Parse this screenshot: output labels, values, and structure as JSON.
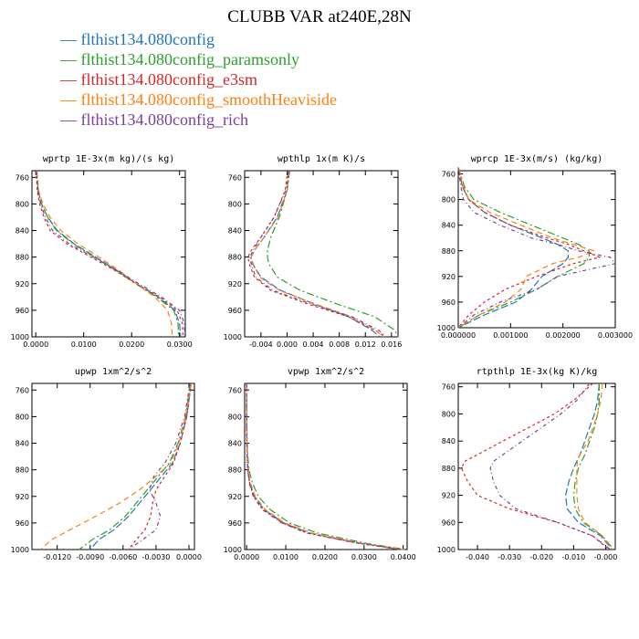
{
  "title": "CLUBB VAR at240E,28N",
  "legend": [
    {
      "label": "flthist134.080config",
      "color": "#1f77b4"
    },
    {
      "label": "flthist134.080config_paramsonly",
      "color": "#2ca02c"
    },
    {
      "label": "flthist134.080config_e3sm",
      "color": "#d62728"
    },
    {
      "label": "flthist134.080config_smoothHeaviside",
      "color": "#ff7f0e"
    },
    {
      "label": "flthist134.080config_rich",
      "color": "#7b3f9e"
    }
  ],
  "chart_data": [
    {
      "type": "line",
      "title": "wprtp  1E-3x(m kg)/(s kg)",
      "y": [
        750,
        780,
        800,
        820,
        840,
        860,
        880,
        900,
        920,
        940,
        960,
        980,
        1000
      ],
      "ylim": [
        750,
        1000
      ],
      "yticks": [
        "760",
        "800",
        "840",
        "880",
        "920",
        "960",
        "1000"
      ],
      "yticks_values": [
        760,
        800,
        840,
        880,
        920,
        960,
        1000
      ],
      "xlim": [
        -0.0008,
        0.0312
      ],
      "xticks": [
        "0.0000",
        "0.0100",
        "0.0200",
        "0.0300"
      ],
      "xticks_values": [
        0.0,
        0.01,
        0.02,
        0.03
      ],
      "series": [
        {
          "values": [
            0.0002,
            0.0005,
            0.0012,
            0.0025,
            0.0045,
            0.008,
            0.0125,
            0.017,
            0.021,
            0.0255,
            0.029,
            0.03,
            0.0302
          ]
        },
        {
          "values": [
            0.0002,
            0.0005,
            0.0012,
            0.0025,
            0.0043,
            0.0078,
            0.0122,
            0.0167,
            0.0208,
            0.0252,
            0.0288,
            0.0297,
            0.0298
          ]
        },
        {
          "values": [
            0.0001,
            0.0003,
            0.0008,
            0.0017,
            0.003,
            0.0065,
            0.0115,
            0.0165,
            0.021,
            0.0258,
            0.0295,
            0.0306,
            0.0307
          ]
        },
        {
          "values": [
            0.0002,
            0.0006,
            0.0015,
            0.003,
            0.0052,
            0.0088,
            0.0132,
            0.0174,
            0.021,
            0.0248,
            0.0275,
            0.0283,
            0.0285
          ]
        },
        {
          "values": [
            0.0001,
            0.0004,
            0.001,
            0.002,
            0.0035,
            0.007,
            0.012,
            0.017,
            0.0215,
            0.0262,
            0.03,
            0.031,
            0.0311
          ]
        }
      ]
    },
    {
      "type": "line",
      "title": "wpthlp  1x(m K)/s",
      "y": [
        750,
        780,
        820,
        850,
        870,
        880,
        890,
        910,
        930,
        950,
        970,
        990,
        1000
      ],
      "ylim": [
        750,
        1000
      ],
      "yticks": [
        "760",
        "800",
        "840",
        "880",
        "920",
        "960",
        "1000"
      ],
      "yticks_values": [
        760,
        800,
        840,
        880,
        920,
        960,
        1000
      ],
      "xlim": [
        -0.0065,
        0.017
      ],
      "xticks": [
        "-0.004",
        "0.000",
        "0.004",
        "0.008",
        "0.012",
        "0.016"
      ],
      "xticks_values": [
        -0.004,
        0.0,
        0.004,
        0.008,
        0.012,
        0.016
      ],
      "series": [
        {
          "values": [
            0.0002,
            0.0,
            -0.0015,
            -0.0035,
            -0.005,
            -0.0055,
            -0.0053,
            -0.004,
            -0.001,
            0.004,
            0.0095,
            0.013,
            0.0142
          ]
        },
        {
          "values": [
            0.0004,
            0.0,
            -0.0012,
            -0.0025,
            -0.003,
            -0.003,
            -0.0028,
            -0.0015,
            0.002,
            0.0075,
            0.0135,
            0.0165,
            0.0172
          ]
        },
        {
          "values": [
            0.0001,
            -0.0003,
            -0.002,
            -0.004,
            -0.0055,
            -0.006,
            -0.0058,
            -0.005,
            -0.0025,
            0.003,
            0.0095,
            0.0135,
            0.015
          ]
        },
        {
          "values": [
            0.0003,
            0.0,
            -0.0014,
            -0.0035,
            -0.005,
            -0.0055,
            -0.0052,
            -0.0042,
            -0.0012,
            0.0042,
            0.01,
            0.0135,
            0.0148
          ]
        },
        {
          "values": [
            0.0004,
            -0.0002,
            -0.002,
            -0.004,
            -0.0052,
            -0.0057,
            -0.0055,
            -0.0048,
            -0.0022,
            0.0035,
            0.01,
            0.014,
            0.0152
          ]
        }
      ]
    },
    {
      "type": "line",
      "title": "wprcp  1E-3x(m/s) (kg/kg)",
      "y": [
        750,
        780,
        800,
        820,
        840,
        860,
        870,
        880,
        890,
        900,
        920,
        940,
        960,
        980,
        1000
      ],
      "ylim": [
        755,
        1000
      ],
      "yticks": [
        "760",
        "800",
        "840",
        "880",
        "920",
        "960",
        "1000"
      ],
      "yticks_values": [
        760,
        800,
        840,
        880,
        920,
        960,
        1000
      ],
      "xlim": [
        0.0,
        0.003
      ],
      "xticks": [
        "0.000000",
        "0.001000",
        "0.002000",
        "0.003000"
      ],
      "xticks_values": [
        0.0,
        0.001,
        0.002,
        0.003
      ],
      "series": [
        {
          "values": [
            0.0,
            8e-05,
            0.0002,
            0.0005,
            0.001,
            0.0016,
            0.0019,
            0.0021,
            0.0021,
            0.002,
            0.0016,
            0.0014,
            0.0011,
            0.0005,
            0.0
          ]
        },
        {
          "values": [
            0.0,
            0.00012,
            0.0003,
            0.0008,
            0.0014,
            0.002,
            0.0023,
            0.0025,
            0.0025,
            0.0024,
            0.0019,
            0.0015,
            0.001,
            0.0004,
            0.0
          ]
        },
        {
          "values": [
            0.0,
            8e-05,
            0.0002,
            0.0005,
            0.001,
            0.0017,
            0.0021,
            0.0024,
            0.0027,
            0.0022,
            0.0015,
            0.0009,
            0.0005,
            0.0002,
            0.0
          ]
        },
        {
          "values": [
            0.0,
            0.0001,
            0.0002,
            0.0006,
            0.0012,
            0.0018,
            0.0022,
            0.0026,
            0.0023,
            0.0018,
            0.0013,
            0.0012,
            0.0009,
            0.0004,
            0.0
          ]
        },
        {
          "values": [
            0.0,
            5e-05,
            0.0001,
            0.0003,
            0.0008,
            0.0014,
            0.0019,
            0.0023,
            0.0029,
            0.003,
            0.0019,
            0.0015,
            0.0008,
            0.0003,
            0.0
          ]
        }
      ]
    },
    {
      "type": "line",
      "title": "upwp  1xm^2/s^2",
      "y": [
        750,
        800,
        840,
        870,
        890,
        910,
        930,
        950,
        970,
        985,
        1000
      ],
      "ylim": [
        750,
        1000
      ],
      "yticks": [
        "760",
        "800",
        "840",
        "880",
        "920",
        "960",
        "1000"
      ],
      "yticks_values": [
        760,
        800,
        840,
        880,
        920,
        960,
        1000
      ],
      "xlim": [
        -0.0143,
        0.0005
      ],
      "xticks": [
        "-0.0120",
        "-0.0090",
        "-0.0060",
        "-0.0030",
        "0.0000"
      ],
      "xticks_values": [
        -0.012,
        -0.009,
        -0.006,
        -0.003,
        0.0
      ],
      "series": [
        {
          "values": [
            0.0002,
            -0.0002,
            -0.0008,
            -0.0015,
            -0.0025,
            -0.0035,
            -0.0045,
            -0.0055,
            -0.0068,
            -0.0082,
            -0.009
          ]
        },
        {
          "values": [
            0.0001,
            -0.0003,
            -0.001,
            -0.0018,
            -0.0028,
            -0.0038,
            -0.0048,
            -0.0058,
            -0.0072,
            -0.0088,
            -0.01
          ]
        },
        {
          "values": [
            0.0002,
            -0.0002,
            -0.0008,
            -0.0014,
            -0.0022,
            -0.003,
            -0.0033,
            -0.0035,
            -0.004,
            -0.0048,
            -0.0055
          ]
        },
        {
          "values": [
            0.0002,
            -0.0003,
            -0.0009,
            -0.0017,
            -0.003,
            -0.0045,
            -0.0063,
            -0.0085,
            -0.0108,
            -0.0125,
            -0.0135
          ]
        },
        {
          "values": [
            0.0001,
            -0.0004,
            -0.0012,
            -0.0022,
            -0.0032,
            -0.0036,
            -0.003,
            -0.0026,
            -0.003,
            -0.0042,
            -0.0055
          ]
        }
      ]
    },
    {
      "type": "line",
      "title": "vpwp  1xm^2/s^2",
      "y": [
        750,
        800,
        850,
        880,
        900,
        920,
        940,
        960,
        975,
        990,
        1000
      ],
      "ylim": [
        750,
        1000
      ],
      "yticks": [
        "760",
        "800",
        "840",
        "880",
        "920",
        "960",
        "1000"
      ],
      "yticks_values": [
        760,
        800,
        840,
        880,
        920,
        960,
        1000
      ],
      "xlim": [
        -0.0005,
        0.041
      ],
      "xticks": [
        "0.0000",
        "0.0100",
        "0.0200",
        "0.0300",
        "0.0400"
      ],
      "xticks_values": [
        0.0,
        0.01,
        0.02,
        0.03,
        0.04
      ],
      "series": [
        {
          "values": [
            0.0,
            0.0,
            0.0001,
            0.0003,
            0.0008,
            0.002,
            0.0045,
            0.0095,
            0.016,
            0.0285,
            0.0395
          ]
        },
        {
          "values": [
            0.0,
            0.0,
            0.0002,
            0.0006,
            0.0015,
            0.003,
            0.006,
            0.011,
            0.018,
            0.03,
            0.0405
          ]
        },
        {
          "values": [
            0.0,
            0.0,
            0.0001,
            0.0003,
            0.0008,
            0.0018,
            0.0042,
            0.0092,
            0.0155,
            0.028,
            0.0395
          ]
        },
        {
          "values": [
            0.0,
            0.0,
            0.0001,
            0.0004,
            0.001,
            0.0022,
            0.0048,
            0.0098,
            0.0165,
            0.029,
            0.04
          ]
        },
        {
          "values": [
            0.0,
            0.0,
            0.0001,
            0.0003,
            0.0007,
            0.0017,
            0.004,
            0.009,
            0.0152,
            0.0278,
            0.0392
          ]
        }
      ]
    },
    {
      "type": "line",
      "title": "rtpthlp  1E-3x(kg K)/kg",
      "y": [
        755,
        780,
        800,
        820,
        840,
        860,
        870,
        880,
        900,
        920,
        940,
        960,
        980,
        1000
      ],
      "ylim": [
        755,
        1000
      ],
      "yticks": [
        "760",
        "800",
        "840",
        "880",
        "920",
        "960",
        "1000"
      ],
      "yticks_values": [
        760,
        800,
        840,
        880,
        920,
        960,
        1000
      ],
      "xlim": [
        -0.046,
        0.003
      ],
      "xticks": [
        "-0.040",
        "-0.030",
        "-0.020",
        "-0.010",
        "-0.000"
      ],
      "xticks_values": [
        -0.04,
        -0.03,
        -0.02,
        -0.01,
        0.0
      ],
      "series": [
        {
          "values": [
            -0.002,
            -0.0025,
            -0.0035,
            -0.005,
            -0.0065,
            -0.008,
            -0.009,
            -0.01,
            -0.0115,
            -0.0125,
            -0.012,
            -0.0085,
            -0.0015,
            0.002
          ]
        },
        {
          "values": [
            -0.002,
            -0.002,
            -0.0025,
            -0.0035,
            -0.005,
            -0.0065,
            -0.0075,
            -0.0085,
            -0.0095,
            -0.01,
            -0.0095,
            -0.007,
            -0.001,
            0.0025
          ]
        },
        {
          "values": [
            -0.004,
            -0.01,
            -0.016,
            -0.024,
            -0.032,
            -0.04,
            -0.044,
            -0.045,
            -0.043,
            -0.04,
            -0.03,
            -0.015,
            -0.004,
            0.001
          ]
        },
        {
          "values": [
            -0.001,
            -0.0015,
            -0.0025,
            -0.004,
            -0.0055,
            -0.008,
            -0.0088,
            -0.009,
            -0.009,
            -0.009,
            -0.0085,
            -0.0065,
            -0.001,
            0.002
          ]
        },
        {
          "values": [
            -0.005,
            -0.009,
            -0.014,
            -0.02,
            -0.026,
            -0.032,
            -0.035,
            -0.036,
            -0.035,
            -0.033,
            -0.028,
            -0.015,
            -0.004,
            0.0015
          ]
        }
      ]
    }
  ]
}
